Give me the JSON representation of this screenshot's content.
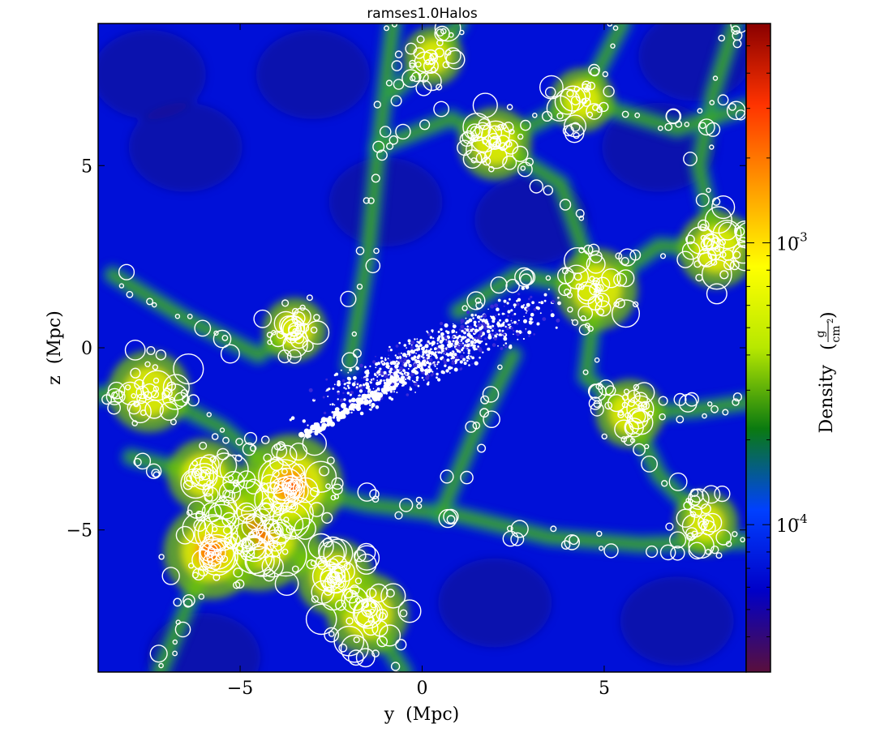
{
  "chart_data": {
    "type": "heatmap",
    "title": "ramses1.0Halos",
    "xlabel": "y  (Mpc)",
    "ylabel": "z  (Mpc)",
    "xlim": [
      -8.9,
      8.9
    ],
    "ylim": [
      -8.9,
      8.9
    ],
    "x_ticks": [
      {
        "value": -5,
        "label": "−5"
      },
      {
        "value": 0,
        "label": "0"
      },
      {
        "value": 5,
        "label": "5"
      }
    ],
    "y_ticks": [
      {
        "value": 5,
        "label": "5"
      },
      {
        "value": 0,
        "label": "0"
      },
      {
        "value": -5,
        "label": "−5"
      }
    ],
    "colorbar": {
      "label": "Density",
      "unit_numerator": "g",
      "unit_denominator": "cm",
      "unit_exponent": "2",
      "scale": "log",
      "range": [
        3e-05,
        0.006
      ],
      "colormap": [
        "#5a0f3c",
        "#0000c8",
        "#0040ff",
        "#0a7a10",
        "#b7e800",
        "#ffff00",
        "#ff9900",
        "#ff3300",
        "#8a0000"
      ],
      "ticks": [
        {
          "value": 0.001,
          "base": "10",
          "exponent": "-3"
        },
        {
          "value": 0.0001,
          "base": "10",
          "exponent": "-4"
        }
      ]
    },
    "halo_clusters": [
      {
        "y": -4.5,
        "z": -5.0,
        "weight": 1.0
      },
      {
        "y": -3.6,
        "z": -3.8,
        "weight": 0.8
      },
      {
        "y": -5.8,
        "z": -5.6,
        "weight": 0.7
      },
      {
        "y": -7.5,
        "z": -1.2,
        "weight": 0.55
      },
      {
        "y": -1.5,
        "z": -7.3,
        "weight": 0.55
      },
      {
        "y": -2.4,
        "z": -6.3,
        "weight": 0.5
      },
      {
        "y": 4.8,
        "z": 1.6,
        "weight": 0.55
      },
      {
        "y": 8.1,
        "z": 2.7,
        "weight": 0.5
      },
      {
        "y": 2.0,
        "z": 5.6,
        "weight": 0.45
      },
      {
        "y": 5.7,
        "z": -1.8,
        "weight": 0.4
      },
      {
        "y": 4.4,
        "z": 6.8,
        "weight": 0.35
      },
      {
        "y": -3.5,
        "z": 0.5,
        "weight": 0.35
      },
      {
        "y": -6.0,
        "z": -3.5,
        "weight": 0.45
      },
      {
        "y": 7.8,
        "z": -4.8,
        "weight": 0.35
      },
      {
        "y": 0.3,
        "z": 8.0,
        "weight": 0.3
      }
    ],
    "central_particles": {
      "y_center": 0.3,
      "z_center": -0.2,
      "orientation": "lower-left to upper-right"
    }
  }
}
